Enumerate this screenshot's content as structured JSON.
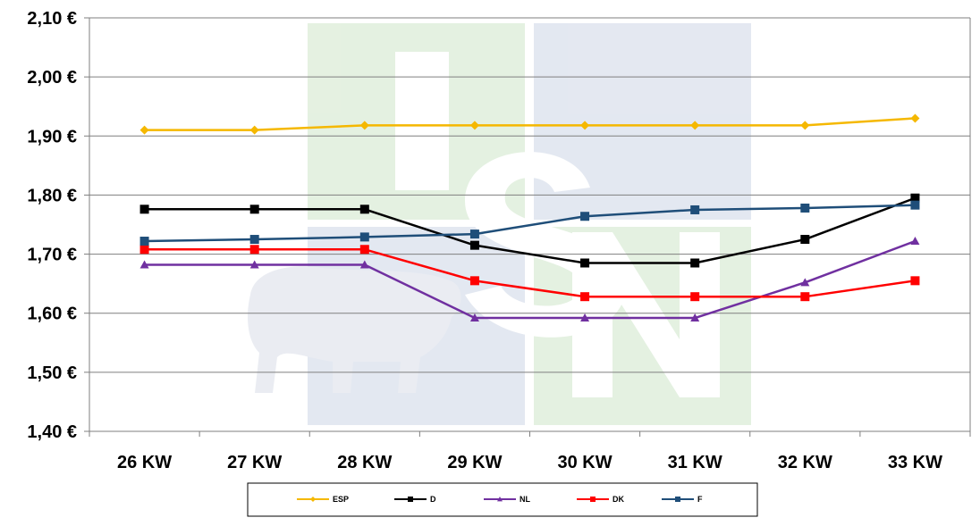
{
  "chart_data": {
    "type": "line",
    "title": "",
    "xlabel": "",
    "ylabel": "",
    "categories": [
      "26 KW",
      "27 KW",
      "28 KW",
      "29 KW",
      "30 KW",
      "31 KW",
      "32 KW",
      "33 KW"
    ],
    "ylim": [
      1.4,
      2.1
    ],
    "yticks": [
      1.4,
      1.5,
      1.6,
      1.7,
      1.8,
      1.9,
      2.0,
      2.1
    ],
    "ytick_labels": [
      "1,40 €",
      "1,50 €",
      "1,60 €",
      "1,70 €",
      "1,80 €",
      "1,90 €",
      "2,00 €",
      "2,10 €"
    ],
    "grid": true,
    "legend_position": "bottom",
    "series": [
      {
        "name": "ESP",
        "color": "#F5B800",
        "marker": "diamond",
        "values": [
          1.91,
          1.91,
          1.918,
          1.918,
          1.918,
          1.918,
          1.918,
          1.93
        ]
      },
      {
        "name": "D",
        "color": "#000000",
        "marker": "square",
        "values": [
          1.776,
          1.776,
          1.776,
          1.715,
          1.685,
          1.685,
          1.725,
          1.795
        ]
      },
      {
        "name": "NL",
        "color": "#7030A0",
        "marker": "triangle",
        "values": [
          1.682,
          1.682,
          1.682,
          1.592,
          1.592,
          1.592,
          1.652,
          1.722
        ]
      },
      {
        "name": "DK",
        "color": "#FF0000",
        "marker": "square",
        "values": [
          1.708,
          1.708,
          1.708,
          1.655,
          1.628,
          1.628,
          1.628,
          1.655
        ]
      },
      {
        "name": "F",
        "color": "#1F4E79",
        "marker": "square",
        "values": [
          1.722,
          1.725,
          1.729,
          1.734,
          1.764,
          1.775,
          1.778,
          1.783
        ]
      }
    ]
  }
}
